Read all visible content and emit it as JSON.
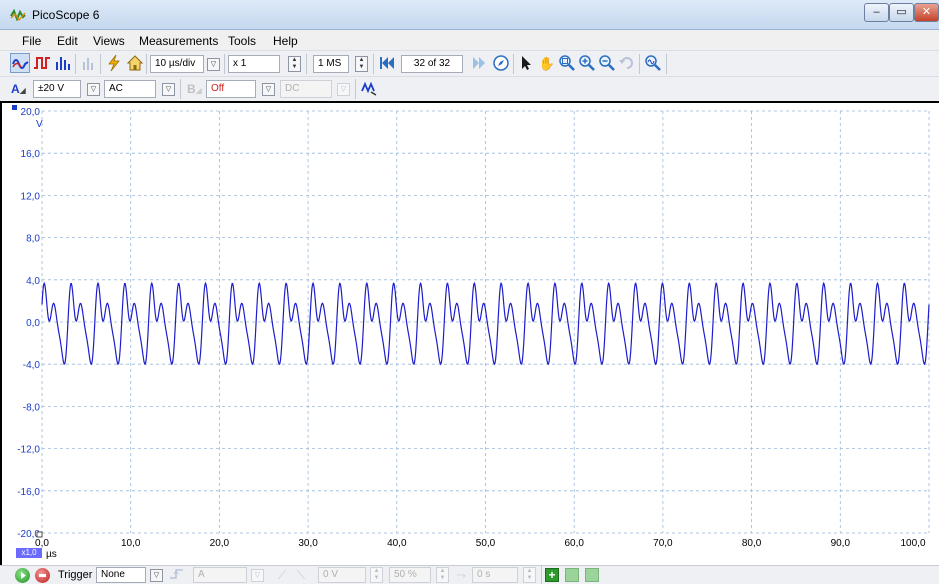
{
  "window": {
    "title": "PicoScope 6",
    "buttons": {
      "minimize": "‒",
      "restore": "▭",
      "close": "✕"
    }
  },
  "menu": {
    "items": [
      "File",
      "Edit",
      "Views",
      "Measurements",
      "Tools",
      "Help"
    ]
  },
  "toolbar": {
    "timebase": "10 µs/div",
    "zoom": "x 1",
    "samples": "1 MS",
    "buffer": "32 of 32"
  },
  "channels": {
    "a": {
      "label": "A",
      "range": "±20 V",
      "coupling": "AC"
    },
    "b": {
      "label": "B",
      "range": "Off",
      "coupling": "DC"
    }
  },
  "scope": {
    "y_unit": "V",
    "y_ticks": [
      "20,0",
      "16,0",
      "12,0",
      "8,0",
      "4,0",
      "0,0",
      "-4,0",
      "-8,0",
      "-12,0",
      "-16,0",
      "-20,0"
    ],
    "x_ticks": [
      "0,0",
      "10,0",
      "20,0",
      "30,0",
      "40,0",
      "50,0",
      "60,0",
      "70,0",
      "80,0",
      "90,0",
      "100,0"
    ],
    "x_unit": "µs",
    "x_scale": "x1,0",
    "trace_color": "#1d1dcc",
    "grid_color": "#9ab9d8"
  },
  "chart_data": {
    "type": "line",
    "series": [
      {
        "name": "",
        "waveform": "sum of sinusoids",
        "amplitude_peak": 4.0,
        "fundamental_cycles": 33
      }
    ],
    "x_range": [
      0,
      100
    ],
    "y_range": [
      -20,
      20
    ],
    "xlabel": "µs",
    "ylabel": "V",
    "grid": true
  },
  "status": {
    "trigger_label": "Trigger",
    "trigger_mode": "None",
    "trigger_source": "A",
    "threshold": "0 V",
    "pretrigger": "50 %",
    "delay": "0 s"
  }
}
